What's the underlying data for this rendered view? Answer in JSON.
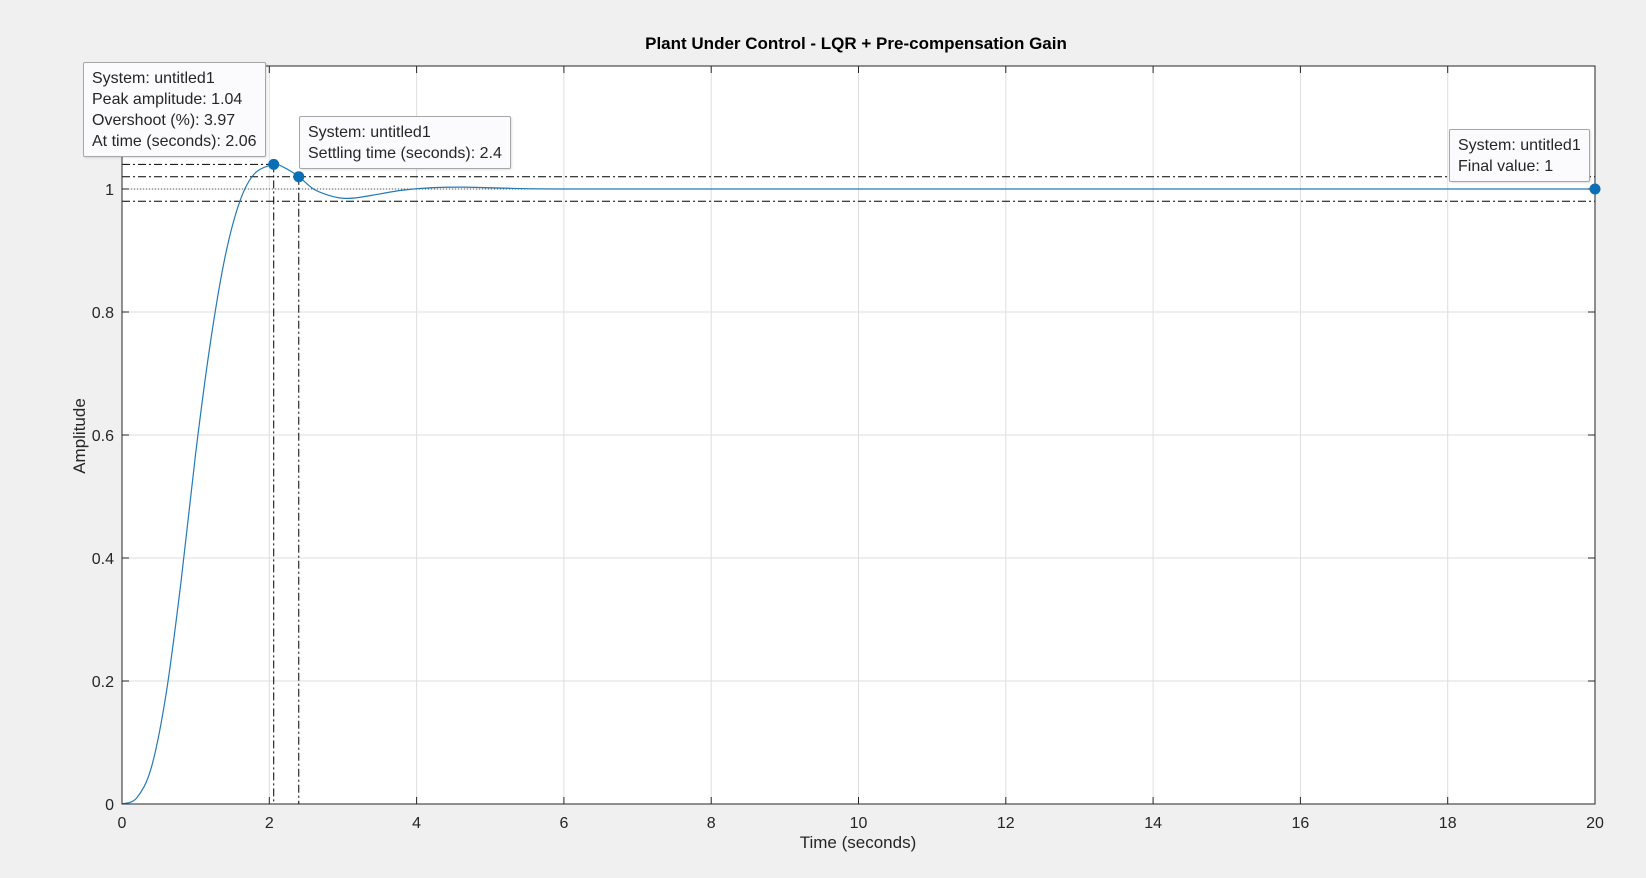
{
  "figure": {
    "background": "#f0f0f0",
    "axes_background": "#ffffff",
    "grid_color": "#dedede",
    "axis_color": "#262626",
    "line_color": "#2479b8",
    "marker_color": "#0b6fb5"
  },
  "chart_data": {
    "type": "line",
    "title": "Plant Under Control - LQR + Pre-compensation Gain",
    "xlabel": "Time (seconds)",
    "ylabel": "Amplitude",
    "xlim": [
      0,
      20
    ],
    "ylim": [
      0,
      1.2
    ],
    "grid": true,
    "xticks": [
      0,
      2,
      4,
      6,
      8,
      10,
      12,
      14,
      16,
      18,
      20
    ],
    "yticks": [
      0,
      0.2,
      0.4,
      0.6,
      0.8,
      1
    ],
    "xtick_labels": [
      "0",
      "2",
      "4",
      "6",
      "8",
      "10",
      "12",
      "14",
      "16",
      "18",
      "20"
    ],
    "ytick_labels": [
      "0",
      "0.2",
      "0.4",
      "0.6",
      "0.8",
      "1"
    ],
    "series": [
      {
        "x": [
          0,
          0.2,
          0.4,
          0.6,
          0.8,
          1.0,
          1.2,
          1.4,
          1.6,
          1.8,
          2.06,
          2.2,
          2.4,
          2.6,
          2.8,
          3.0,
          3.2,
          3.5,
          3.8,
          4.2,
          4.6,
          5.0,
          5.5,
          6.0,
          7.0,
          8.0,
          10.0,
          14.0,
          20.0
        ],
        "y": [
          0,
          0.01,
          0.06,
          0.18,
          0.36,
          0.57,
          0.75,
          0.89,
          0.98,
          1.025,
          1.0397,
          1.035,
          1.02,
          1.0,
          0.99,
          0.985,
          0.986,
          0.992,
          0.998,
          1.002,
          1.003,
          1.002,
          1.0005,
          1.0,
          1.0,
          1.0,
          1.0,
          1.0,
          1.0
        ]
      }
    ],
    "reference_lines": {
      "settling_band_upper": 1.02,
      "settling_band_lower": 0.98,
      "final_value_line": 1.0,
      "peak_level": 1.04,
      "peak_time": 2.06,
      "settling_time": 2.4
    },
    "markers": [
      {
        "name": "peak",
        "x": 2.06,
        "y": 1.04
      },
      {
        "name": "settling",
        "x": 2.4,
        "y": 1.02
      },
      {
        "name": "final",
        "x": 20,
        "y": 1.0
      }
    ],
    "datatips": {
      "peak": [
        "System: untitled1",
        "Peak amplitude: 1.04",
        "Overshoot (%): 3.97",
        "At time (seconds): 2.06"
      ],
      "settling": [
        "System: untitled1",
        "Settling time (seconds): 2.4"
      ],
      "final": [
        "System: untitled1",
        "Final value: 1"
      ]
    }
  }
}
